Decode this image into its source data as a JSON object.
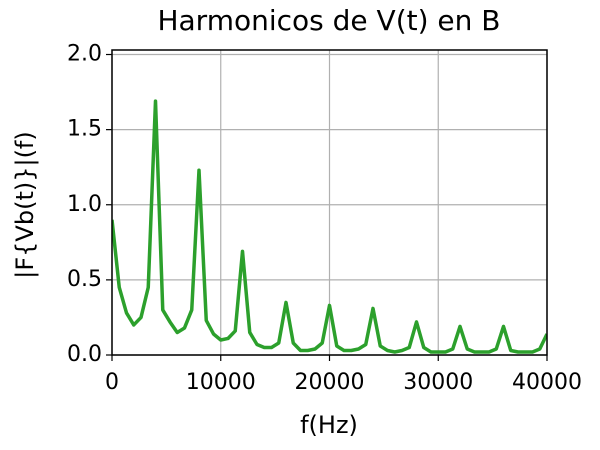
{
  "chart_data": {
    "type": "line",
    "title": "Harmonicos de V(t) en B",
    "xlabel": "f(Hz)",
    "ylabel": "|F{Vb(t)}|(f)",
    "x": [
      0,
      667,
      1333,
      2000,
      2667,
      3333,
      4000,
      4667,
      5333,
      6000,
      6667,
      7333,
      8000,
      8667,
      9333,
      10000,
      10667,
      11333,
      12000,
      12667,
      13333,
      14000,
      14667,
      15333,
      16000,
      16667,
      17333,
      18000,
      18667,
      19333,
      20000,
      20667,
      21333,
      22000,
      22667,
      23333,
      24000,
      24667,
      25333,
      26000,
      26667,
      27333,
      28000,
      28667,
      29333,
      30000,
      30667,
      31333,
      32000,
      32667,
      33333,
      34000,
      34667,
      35333,
      36000,
      36667,
      37333,
      38000,
      38667,
      39333,
      40000
    ],
    "series": [
      {
        "name": "|F{Vb(t)}|",
        "color": "#2ca02c",
        "values": [
          0.9,
          0.45,
          0.28,
          0.2,
          0.25,
          0.45,
          1.69,
          0.3,
          0.22,
          0.15,
          0.18,
          0.3,
          1.23,
          0.23,
          0.14,
          0.1,
          0.11,
          0.16,
          0.69,
          0.15,
          0.07,
          0.05,
          0.05,
          0.08,
          0.35,
          0.08,
          0.03,
          0.03,
          0.04,
          0.08,
          0.33,
          0.06,
          0.03,
          0.03,
          0.04,
          0.07,
          0.31,
          0.06,
          0.03,
          0.02,
          0.03,
          0.05,
          0.22,
          0.05,
          0.02,
          0.02,
          0.02,
          0.04,
          0.19,
          0.04,
          0.02,
          0.02,
          0.02,
          0.04,
          0.19,
          0.03,
          0.02,
          0.02,
          0.02,
          0.04,
          0.14
        ]
      }
    ],
    "xlim": [
      0,
      40000
    ],
    "xticks": [
      0,
      10000,
      20000,
      30000,
      40000
    ],
    "ylim": [
      0,
      2.03
    ],
    "yticks": [
      {
        "value": 0,
        "label": "0.0"
      },
      {
        "value": 0.5,
        "label": "0.5"
      },
      {
        "value": 1,
        "label": "1.0"
      },
      {
        "value": 1.5,
        "label": "1.5"
      },
      {
        "value": 2,
        "label": "2.0"
      }
    ],
    "grid": true
  }
}
